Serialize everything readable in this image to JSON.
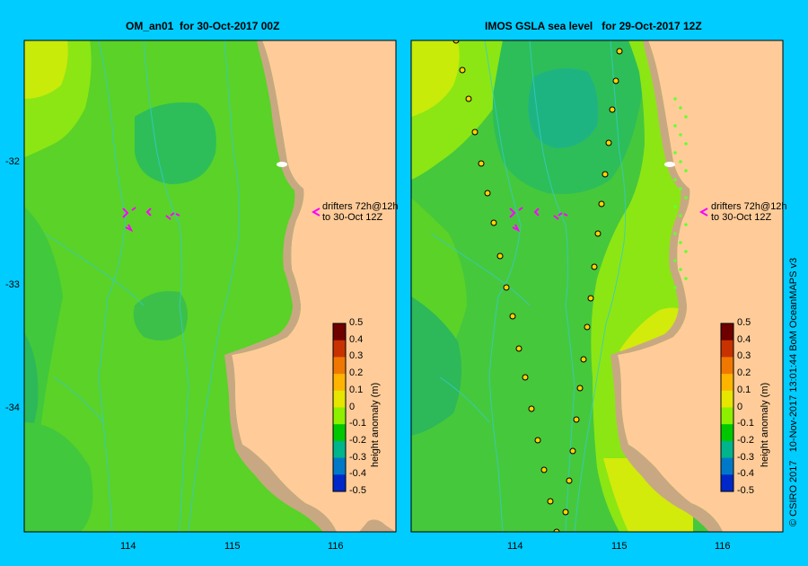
{
  "panels": [
    {
      "title": "OM_an01  for 30-Oct-2017 00Z",
      "drifter_label": [
        "drifters 72h@12h",
        "to 30-Oct 12Z"
      ]
    },
    {
      "title": "IMOS GSLA sea level   for 29-Oct-2017 12Z",
      "drifter_label": [
        "drifters 72h@12h",
        "to 30-Oct 12Z"
      ]
    }
  ],
  "axes": {
    "lon_ticks": [
      "114",
      "115",
      "116"
    ],
    "lat_ticks": [
      "-32",
      "-33",
      "-34"
    ]
  },
  "colorbar": {
    "label": "height anomaly (m)",
    "ticks": [
      "0.5",
      "0.4",
      "0.3",
      "0.2",
      "0.1",
      "0",
      "-0.1",
      "-0.2",
      "-0.3",
      "-0.4",
      "-0.5"
    ],
    "colors": [
      "#6e0000",
      "#c83200",
      "#f07800",
      "#ffb400",
      "#e6e600",
      "#8cf000",
      "#00c800",
      "#00b48c",
      "#0078c8",
      "#0028c8",
      "#000078"
    ]
  },
  "credit": "© CSIRO 2017   10-Nov-2017 13:01:44 BoM OceanMAPS v3",
  "colors": {
    "background": "#00ccff",
    "land": "#ffcc99",
    "shelf": "#c8a882",
    "drifter": "#ff00ff",
    "contour": "#33cccc"
  }
}
